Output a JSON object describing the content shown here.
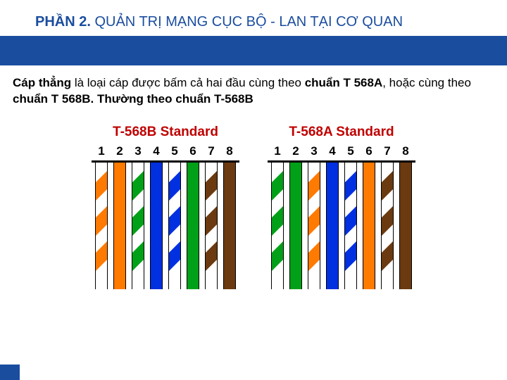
{
  "title": {
    "accent": "PHẦN 2.",
    "rest": " QUẢN TRỊ MẠNG CỤC BỘ - LAN TẠI CƠ QUAN"
  },
  "description": {
    "bold1": "Cáp thẳng",
    "text1": " là loại cáp được bấm cả hai đầu cùng theo ",
    "bold2": "chuẩn T 568A",
    "text2": ", hoặc cùng theo ",
    "bold3": "chuẩn T 568B. Thường theo chuẩn T-568B"
  },
  "pins": [
    "1",
    "2",
    "3",
    "4",
    "5",
    "6",
    "7",
    "8"
  ],
  "diagrams": [
    {
      "title": "T-568B Standard",
      "wires": [
        {
          "type": "striped",
          "color": "#ff7a00"
        },
        {
          "type": "solid",
          "color": "#ff7a00"
        },
        {
          "type": "striped",
          "color": "#00a018"
        },
        {
          "type": "solid",
          "color": "#0030e0"
        },
        {
          "type": "striped",
          "color": "#0030e0"
        },
        {
          "type": "solid",
          "color": "#00a018"
        },
        {
          "type": "striped",
          "color": "#6b3a10"
        },
        {
          "type": "solid",
          "color": "#6b3a10"
        }
      ]
    },
    {
      "title": "T-568A Standard",
      "wires": [
        {
          "type": "striped",
          "color": "#00a018"
        },
        {
          "type": "solid",
          "color": "#00a018"
        },
        {
          "type": "striped",
          "color": "#ff7a00"
        },
        {
          "type": "solid",
          "color": "#0030e0"
        },
        {
          "type": "striped",
          "color": "#0030e0"
        },
        {
          "type": "solid",
          "color": "#ff7a00"
        },
        {
          "type": "striped",
          "color": "#6b3a10"
        },
        {
          "type": "solid",
          "color": "#6b3a10"
        }
      ]
    }
  ],
  "colors": {
    "title_color": "#1a4d9e",
    "bar_color": "#1a4d9e",
    "diagram_title_color": "#c00000",
    "background": "#ffffff"
  }
}
